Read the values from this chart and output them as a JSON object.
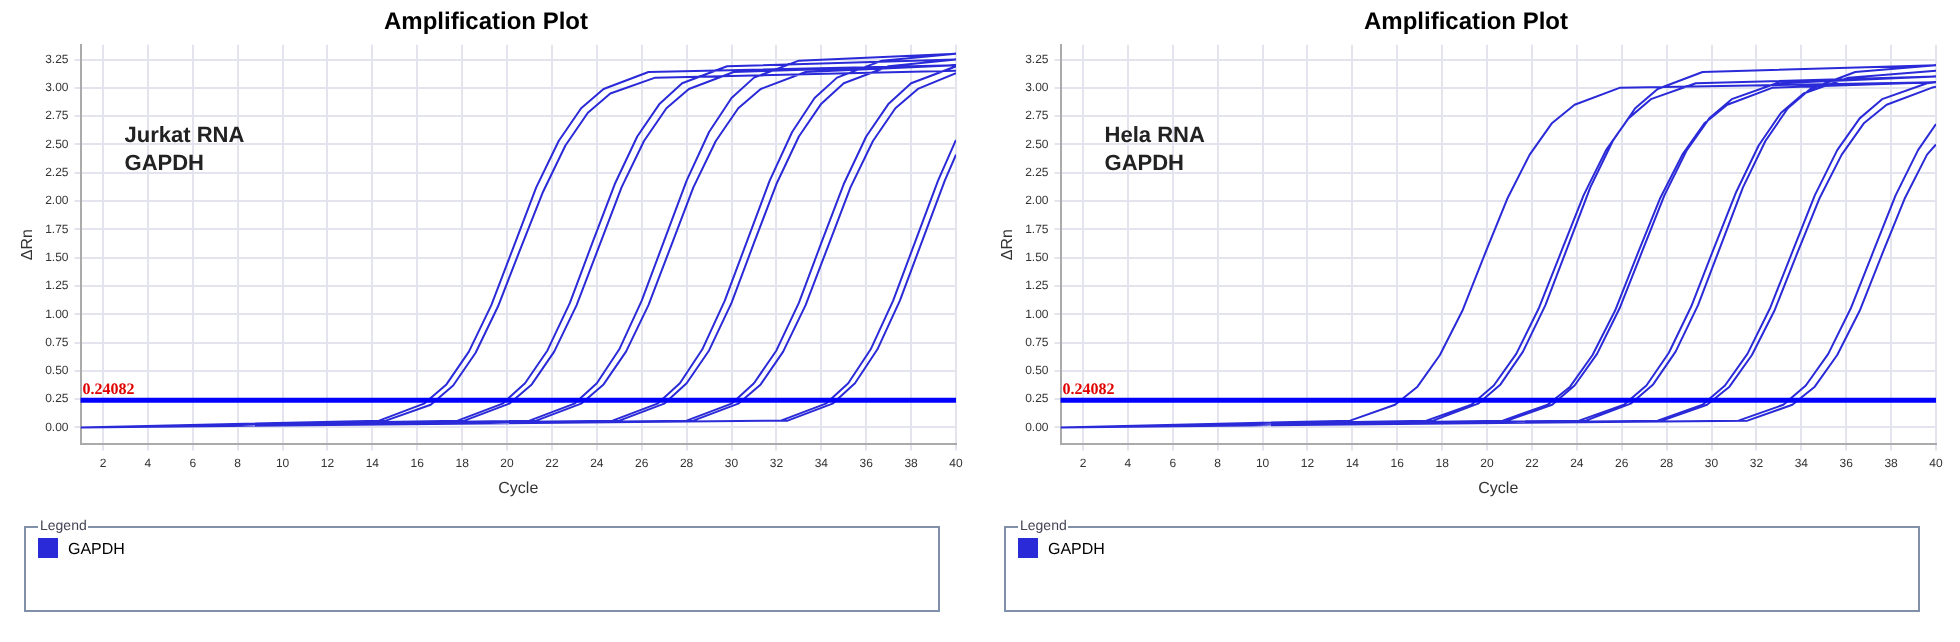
{
  "chart_data": [
    {
      "type": "line",
      "title": "Amplification Plot",
      "xlabel": "Cycle",
      "ylabel": "ΔRn",
      "annotations": [
        "Jurkat RNA\nGAPDH"
      ],
      "legend_title": "Legend",
      "legend": "bottom",
      "grid": true,
      "marker": "none",
      "xlim": [
        1,
        40
      ],
      "xticks": [
        2,
        4,
        6,
        8,
        10,
        12,
        14,
        16,
        18,
        20,
        22,
        24,
        26,
        28,
        30,
        32,
        34,
        36,
        38,
        40
      ],
      "ylim": [
        -0.15,
        3.38
      ],
      "yticks": [
        {
          "value": 0,
          "label": "0.00"
        },
        {
          "value": 0.25,
          "label": "0.25"
        },
        {
          "value": 0.5,
          "label": "0.50"
        },
        {
          "value": 0.75,
          "label": "0.75"
        },
        {
          "value": 1,
          "label": "1.00"
        },
        {
          "value": 1.25,
          "label": "1.25"
        },
        {
          "value": 1.5,
          "label": "1.50"
        },
        {
          "value": 1.75,
          "label": "1.75"
        },
        {
          "value": 2,
          "label": "2.00"
        },
        {
          "value": 2.25,
          "label": "2.25"
        },
        {
          "value": 2.5,
          "label": "2.50"
        },
        {
          "value": 2.75,
          "label": "2.75"
        },
        {
          "value": 3,
          "label": "3.00"
        },
        {
          "value": 3.25,
          "label": "3.25"
        }
      ],
      "ref_lines": [
        {
          "axis": "y",
          "value": 0.24082,
          "label": "0.24082",
          "color": "#0000ff"
        }
      ],
      "series": [
        {
          "name": "GAPDH",
          "color": "#2a2ad8",
          "x": [
            1,
            14.3,
            16.3,
            17.3,
            18.3,
            19.3,
            20.3,
            21.3,
            22.3,
            23.3,
            24.3,
            26.3,
            40,
            1,
            14.6,
            16.6,
            17.6,
            18.6,
            19.6,
            20.6,
            21.6,
            22.6,
            23.6,
            24.6,
            26.6,
            40,
            1,
            17.8,
            19.8,
            20.8,
            21.8,
            22.8,
            23.8,
            24.8,
            25.8,
            26.8,
            27.8,
            29.8,
            40,
            1,
            18.1,
            20.1,
            21.1,
            22.1,
            23.1,
            24.1,
            25.1,
            26.1,
            27.1,
            28.1,
            30.1,
            40,
            1,
            21,
            23,
            24,
            25,
            26,
            27,
            28,
            29,
            30,
            31,
            33,
            40,
            1,
            21.3,
            23.3,
            24.3,
            25.3,
            26.3,
            27.3,
            28.3,
            29.3,
            30.3,
            31.3,
            33.3,
            40,
            1,
            24.7,
            26.7,
            27.7,
            28.7,
            29.7,
            30.7,
            31.7,
            32.7,
            33.7,
            34.7,
            36.7,
            40,
            1,
            25,
            27,
            28,
            29,
            30,
            31,
            32,
            33,
            34,
            35,
            37,
            40,
            1,
            28,
            30,
            31,
            32,
            33,
            34,
            35,
            36,
            37,
            38,
            40,
            1,
            28.3,
            30.3,
            31.3,
            32.3,
            33.3,
            34.3,
            35.3,
            36.3,
            37.3,
            38.3,
            40,
            1,
            32.2,
            34.2,
            35.2,
            36.2,
            37.2,
            38.2,
            39.2,
            40,
            1,
            32.5,
            34.5,
            35.5,
            36.5,
            37.5,
            38.5,
            39.5,
            40
          ],
          "values": [
            0,
            0.06,
            0.21,
            0.38,
            0.67,
            1.08,
            1.6,
            2.12,
            2.53,
            2.82,
            2.99,
            3.14,
            3.2,
            0,
            0.06,
            0.2,
            0.37,
            0.66,
            1.07,
            1.58,
            2.08,
            2.49,
            2.78,
            2.95,
            3.09,
            3.15,
            0,
            0.06,
            0.21,
            0.39,
            0.68,
            1.1,
            1.63,
            2.15,
            2.57,
            2.86,
            3.04,
            3.19,
            3.25,
            0,
            0.06,
            0.21,
            0.38,
            0.67,
            1.08,
            1.6,
            2.12,
            2.53,
            2.82,
            2.99,
            3.14,
            3.2,
            0,
            0.06,
            0.21,
            0.39,
            0.69,
            1.12,
            1.65,
            2.18,
            2.61,
            2.91,
            3.09,
            3.24,
            3.3,
            0,
            0.06,
            0.21,
            0.38,
            0.67,
            1.08,
            1.6,
            2.12,
            2.53,
            2.82,
            2.99,
            3.14,
            3.2,
            0,
            0.06,
            0.21,
            0.39,
            0.69,
            1.12,
            1.65,
            2.18,
            2.61,
            2.91,
            3.09,
            3.24,
            3.3,
            0,
            0.06,
            0.21,
            0.39,
            0.68,
            1.1,
            1.63,
            2.15,
            2.57,
            2.86,
            3.04,
            3.19,
            3.25,
            0,
            0.06,
            0.21,
            0.39,
            0.68,
            1.1,
            1.63,
            2.15,
            2.57,
            2.86,
            3.04,
            3.19,
            0,
            0.06,
            0.21,
            0.38,
            0.67,
            1.08,
            1.6,
            2.12,
            2.53,
            2.82,
            2.99,
            3.13,
            0,
            0.06,
            0.21,
            0.39,
            0.69,
            1.12,
            1.65,
            2.18,
            2.54,
            0,
            0.06,
            0.21,
            0.39,
            0.69,
            1.12,
            1.65,
            2.18,
            2.41
          ]
        }
      ]
    },
    {
      "type": "line",
      "title": "Amplification Plot",
      "xlabel": "Cycle",
      "ylabel": "ΔRn",
      "annotations": [
        "Hela RNA\nGAPDH"
      ],
      "legend_title": "Legend",
      "legend": "bottom",
      "grid": true,
      "marker": "none",
      "xlim": [
        1,
        40
      ],
      "xticks": [
        2,
        4,
        6,
        8,
        10,
        12,
        14,
        16,
        18,
        20,
        22,
        24,
        26,
        28,
        30,
        32,
        34,
        36,
        38,
        40
      ],
      "ylim": [
        -0.15,
        3.38
      ],
      "yticks": [
        {
          "value": 0,
          "label": "0.00"
        },
        {
          "value": 0.25,
          "label": "0.25"
        },
        {
          "value": 0.5,
          "label": "0.50"
        },
        {
          "value": 0.75,
          "label": "0.75"
        },
        {
          "value": 1,
          "label": "1.00"
        },
        {
          "value": 1.25,
          "label": "1.25"
        },
        {
          "value": 1.5,
          "label": "1.50"
        },
        {
          "value": 1.75,
          "label": "1.75"
        },
        {
          "value": 2,
          "label": "2.00"
        },
        {
          "value": 2.25,
          "label": "2.25"
        },
        {
          "value": 2.5,
          "label": "2.50"
        },
        {
          "value": 2.75,
          "label": "2.75"
        },
        {
          "value": 3,
          "label": "3.00"
        },
        {
          "value": 3.25,
          "label": "3.25"
        }
      ],
      "ref_lines": [
        {
          "axis": "y",
          "value": 0.24082,
          "label": "0.24082",
          "color": "#0000ff"
        }
      ],
      "series": [
        {
          "name": "GAPDH",
          "color": "#2a2ad8",
          "x": [
            1,
            13.9,
            15.9,
            16.9,
            17.9,
            18.9,
            19.9,
            20.9,
            21.9,
            22.9,
            23.9,
            25.9,
            40,
            1,
            17.3,
            19.3,
            20.3,
            21.3,
            22.3,
            23.3,
            24.3,
            25.3,
            26.3,
            27.3,
            29.3,
            40,
            1,
            17.6,
            19.6,
            20.6,
            21.6,
            22.6,
            23.6,
            24.6,
            25.6,
            26.6,
            27.6,
            29.6,
            40,
            1,
            20.7,
            22.7,
            23.7,
            24.7,
            25.7,
            26.7,
            27.7,
            28.7,
            29.7,
            30.7,
            32.7,
            40,
            1,
            20.9,
            22.9,
            23.9,
            24.9,
            25.9,
            26.9,
            27.9,
            28.9,
            29.9,
            30.9,
            32.9,
            40,
            1,
            24.1,
            26.1,
            27.1,
            28.1,
            29.1,
            30.1,
            31.1,
            32.1,
            33.1,
            34.1,
            36.1,
            40,
            1,
            24.4,
            26.4,
            27.4,
            28.4,
            29.4,
            30.4,
            31.4,
            32.4,
            33.4,
            34.4,
            36.4,
            40,
            1,
            27.6,
            29.6,
            30.6,
            31.6,
            32.6,
            33.6,
            34.6,
            35.6,
            36.6,
            37.6,
            39.6,
            40,
            1,
            27.8,
            29.8,
            30.8,
            31.8,
            32.8,
            33.8,
            34.8,
            35.8,
            36.8,
            37.8,
            39.8,
            40,
            1,
            31.2,
            33.2,
            34.2,
            35.2,
            36.2,
            37.2,
            38.2,
            39.2,
            40,
            1,
            31.6,
            33.6,
            34.6,
            35.6,
            36.6,
            37.6,
            38.6,
            39.6,
            40
          ],
          "values": [
            0,
            0.06,
            0.2,
            0.36,
            0.64,
            1.03,
            1.53,
            2.02,
            2.41,
            2.69,
            2.85,
            3.0,
            3.05,
            0,
            0.06,
            0.2,
            0.37,
            0.65,
            1.05,
            1.55,
            2.05,
            2.45,
            2.73,
            2.9,
            3.04,
            3.1,
            0,
            0.06,
            0.21,
            0.38,
            0.67,
            1.08,
            1.6,
            2.12,
            2.53,
            2.82,
            2.99,
            3.14,
            3.2,
            0,
            0.06,
            0.2,
            0.36,
            0.64,
            1.03,
            1.53,
            2.02,
            2.41,
            2.69,
            2.85,
            3.0,
            3.05,
            0,
            0.06,
            0.2,
            0.37,
            0.65,
            1.05,
            1.55,
            2.05,
            2.45,
            2.73,
            2.9,
            3.04,
            3.1,
            0,
            0.06,
            0.2,
            0.37,
            0.66,
            1.07,
            1.58,
            2.08,
            2.49,
            2.78,
            2.95,
            3.09,
            3.15,
            0,
            0.06,
            0.21,
            0.38,
            0.67,
            1.08,
            1.6,
            2.12,
            2.53,
            2.82,
            2.99,
            3.14,
            3.2,
            0,
            0.06,
            0.2,
            0.37,
            0.65,
            1.05,
            1.55,
            2.05,
            2.45,
            2.73,
            2.9,
            3.04,
            3.05,
            0,
            0.06,
            0.2,
            0.36,
            0.64,
            1.03,
            1.53,
            2.02,
            2.41,
            2.69,
            2.85,
            3.0,
            3.01,
            0,
            0.06,
            0.2,
            0.37,
            0.65,
            1.05,
            1.55,
            2.05,
            2.45,
            2.68,
            0,
            0.06,
            0.2,
            0.36,
            0.64,
            1.03,
            1.53,
            2.02,
            2.41,
            2.5
          ]
        }
      ]
    }
  ]
}
